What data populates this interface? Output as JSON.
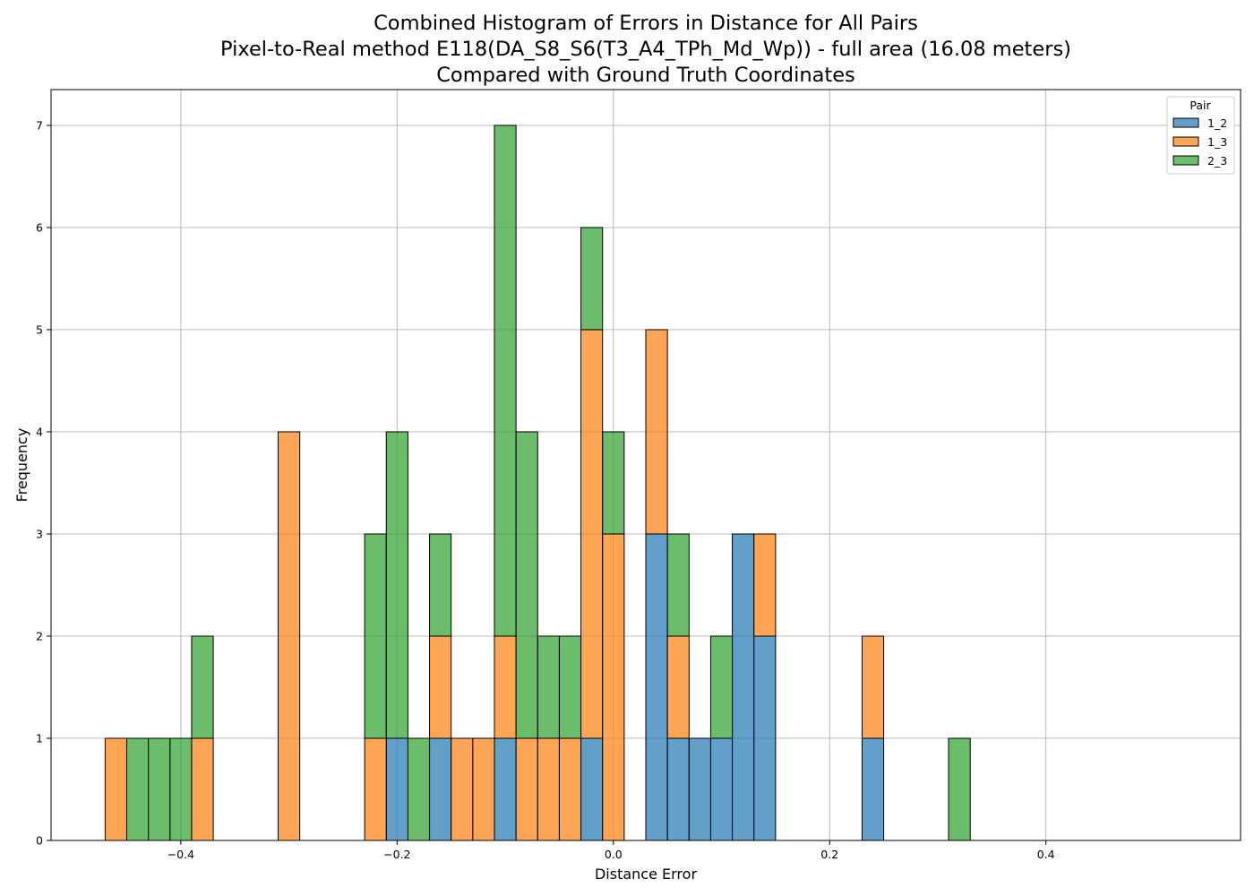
{
  "chart_data": {
    "type": "bar",
    "title": [
      "Combined Histogram of Errors in Distance for All Pairs",
      "Pixel-to-Real method E118(DA_S8_S6(T3_A4_TPh_Md_Wp)) - full area (16.08 meters)",
      "Compared with Ground Truth Coordinates"
    ],
    "xlabel": "Distance Error",
    "ylabel": "Frequency",
    "xlim": [
      -0.52,
      0.58
    ],
    "ylim": [
      0,
      7.35
    ],
    "xticks": [
      -0.4,
      -0.2,
      0.0,
      0.2,
      0.4
    ],
    "xtick_labels": [
      "−0.4",
      "−0.2",
      "0.0",
      "0.2",
      "0.4"
    ],
    "yticks": [
      0,
      1,
      2,
      3,
      4,
      5,
      6,
      7
    ],
    "ytick_labels": [
      "0",
      "1",
      "2",
      "3",
      "4",
      "5",
      "6",
      "7"
    ],
    "grid": true,
    "stacked": true,
    "bin_start": -0.47,
    "bin_width": 0.02,
    "legend": {
      "title": "Pair",
      "placement": "top-right"
    },
    "series": [
      {
        "name": "1_2",
        "color": "#1f77b4",
        "values": [
          0,
          0,
          0,
          0,
          0,
          0,
          0,
          0,
          0,
          0,
          0,
          0,
          0,
          1,
          0,
          1,
          0,
          0,
          1,
          0,
          0,
          0,
          1,
          0,
          0,
          3,
          1,
          1,
          1,
          3,
          2,
          0,
          0,
          0,
          0,
          1,
          0,
          0,
          0,
          0,
          0,
          0,
          0,
          0,
          0,
          0,
          0,
          0,
          0,
          0
        ]
      },
      {
        "name": "1_3",
        "color": "#ff7f0e",
        "values": [
          1,
          0,
          0,
          0,
          1,
          0,
          0,
          0,
          4,
          0,
          0,
          0,
          1,
          0,
          0,
          1,
          1,
          1,
          1,
          1,
          1,
          1,
          4,
          3,
          0,
          2,
          1,
          0,
          0,
          0,
          1,
          0,
          0,
          0,
          0,
          1,
          0,
          0,
          0,
          0,
          0,
          0,
          0,
          0,
          0,
          0,
          0,
          0,
          0,
          0
        ]
      },
      {
        "name": "2_3",
        "color": "#2ca02c",
        "values": [
          0,
          1,
          1,
          1,
          1,
          0,
          0,
          0,
          0,
          0,
          0,
          0,
          2,
          3,
          1,
          1,
          0,
          0,
          5,
          3,
          1,
          1,
          1,
          1,
          0,
          0,
          1,
          0,
          1,
          0,
          0,
          0,
          0,
          0,
          0,
          0,
          0,
          0,
          0,
          1,
          0,
          0,
          0,
          0,
          0,
          0,
          0,
          0,
          0,
          0
        ]
      }
    ]
  }
}
